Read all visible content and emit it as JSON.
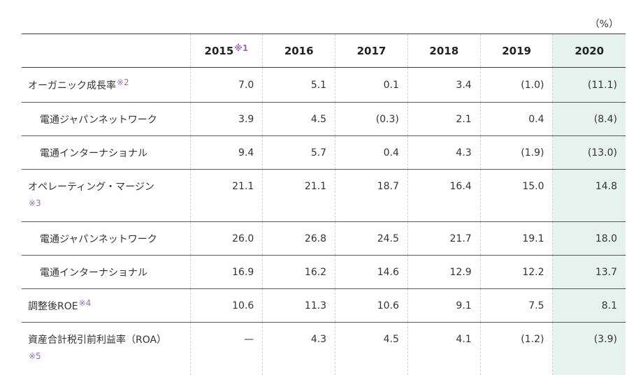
{
  "unit": "（%）",
  "header": {
    "years": [
      {
        "year": "2015",
        "note": "※1"
      },
      {
        "year": "2016",
        "note": ""
      },
      {
        "year": "2017",
        "note": ""
      },
      {
        "year": "2018",
        "note": ""
      },
      {
        "year": "2019",
        "note": ""
      },
      {
        "year": "2020",
        "note": ""
      }
    ]
  },
  "rows": [
    {
      "label": "オーガニック成長率",
      "note": "※2",
      "values": [
        "7.0",
        "5.1",
        "0.1",
        "3.4",
        "(1.0)",
        "(11.1)"
      ]
    },
    {
      "label": "電通ジャパンネットワーク",
      "note": "",
      "values": [
        "3.9",
        "4.5",
        "(0.3)",
        "2.1",
        "0.4",
        "(8.4)"
      ]
    },
    {
      "label": "電通インターナショナル",
      "note": "",
      "values": [
        "9.4",
        "5.7",
        "0.4",
        "4.3",
        "(1.9)",
        "(13.0)"
      ]
    },
    {
      "label": "オペレーティング・マージン",
      "note": "※3",
      "values": [
        "21.1",
        "21.1",
        "18.7",
        "16.4",
        "15.0",
        "14.8"
      ]
    },
    {
      "label": "電通ジャパンネットワーク",
      "note": "",
      "values": [
        "26.0",
        "26.8",
        "24.5",
        "21.7",
        "19.1",
        "18.0"
      ]
    },
    {
      "label": "電通インターナショナル",
      "note": "",
      "values": [
        "16.9",
        "16.2",
        "14.6",
        "12.9",
        "12.2",
        "13.7"
      ]
    },
    {
      "label": "調整後ROE",
      "note": "※4",
      "values": [
        "10.6",
        "11.3",
        "10.6",
        "9.1",
        "7.5",
        "8.1"
      ]
    },
    {
      "label": "資産合計税引前利益率（ROA）",
      "note": "※5",
      "values": [
        "—",
        "4.3",
        "4.5",
        "4.1",
        "(1.2)",
        "(3.9)"
      ]
    }
  ],
  "colors": {
    "highlight_column": "#e6f2ee",
    "note_mark": "#9b6ab0"
  }
}
